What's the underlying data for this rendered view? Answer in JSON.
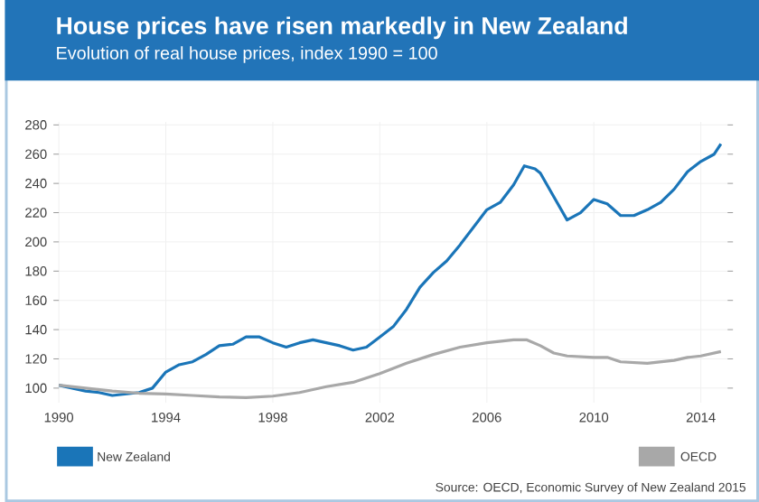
{
  "chart_data": {
    "type": "line",
    "title": "House prices have risen markedly in New Zealand",
    "subtitle": "Evolution of real house prices, index 1990 = 100",
    "xlim": [
      1990,
      2015
    ],
    "xticks": [
      1990,
      1994,
      1998,
      2002,
      2006,
      2010,
      2014
    ],
    "ylim": [
      90,
      282
    ],
    "yticks": [
      100,
      120,
      140,
      160,
      180,
      200,
      220,
      240,
      260,
      280
    ],
    "grid": true,
    "legend": "bottom",
    "marker": "none",
    "line_style": "solid",
    "annotations": [
      "Source: OECD, Economic Survey of New Zealand 2015"
    ],
    "series": [
      {
        "name": "New Zealand",
        "color": "#1a75b8",
        "x": [
          1990,
          1991,
          1991.5,
          1992,
          1993,
          1993.5,
          1994,
          1994.5,
          1995,
          1995.5,
          1996,
          1996.5,
          1997,
          1997.5,
          1998,
          1998.5,
          1999,
          1999.5,
          2000,
          2000.5,
          2001,
          2001.5,
          2002,
          2002.5,
          2003,
          2003.5,
          2004,
          2004.5,
          2005,
          2005.5,
          2006,
          2006.5,
          2007,
          2007.4,
          2007.8,
          2008,
          2008.5,
          2009,
          2009.5,
          2010,
          2010.5,
          2011,
          2011.5,
          2012,
          2012.5,
          2013,
          2013.5,
          2014,
          2014.5,
          2014.75
        ],
        "values": [
          102,
          98,
          97,
          95,
          97,
          100,
          111,
          116,
          118,
          123,
          129,
          130,
          135,
          135,
          131,
          128,
          131,
          133,
          131,
          129,
          126,
          128,
          135,
          142,
          154,
          169,
          179,
          187,
          198,
          210,
          222,
          227,
          239,
          252,
          250,
          247,
          231,
          215,
          220,
          229,
          226,
          218,
          218,
          222,
          227,
          236,
          248,
          255,
          260,
          267
        ]
      },
      {
        "name": "OECD",
        "color": "#a8a8a8",
        "x": [
          1990,
          1991,
          1992,
          1993,
          1994,
          1995,
          1996,
          1997,
          1998,
          1999,
          2000,
          2001,
          2002,
          2003,
          2004,
          2005,
          2006,
          2007,
          2007.5,
          2008,
          2008.5,
          2009,
          2010,
          2010.5,
          2011,
          2012,
          2013,
          2013.5,
          2014,
          2014.75
        ],
        "values": [
          102,
          100,
          98,
          96.5,
          96,
          95,
          94,
          93.5,
          94.5,
          97,
          101,
          104,
          110,
          117,
          123,
          128,
          131,
          133,
          133,
          129,
          124,
          122,
          121,
          121,
          118,
          117,
          119,
          121,
          122,
          125
        ]
      }
    ]
  }
}
